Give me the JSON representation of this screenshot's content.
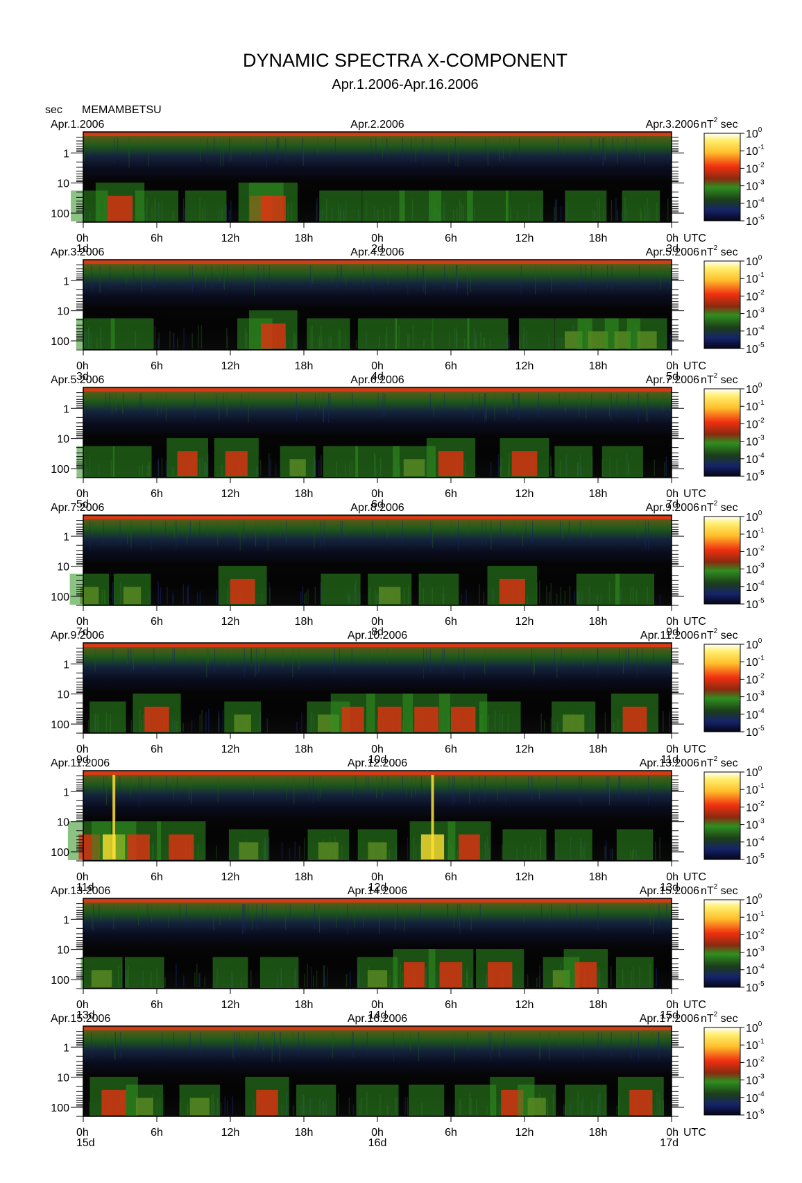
{
  "chart_data": {
    "type": "heatmap",
    "title": "DYNAMIC SPECTRA X-COMPONENT",
    "subtitle": "Apr.1.2006-Apr.16.2006",
    "ylabel": "sec",
    "station": "MEMAMBETSU",
    "xunit": "UTC",
    "colorbar_unit": "nT² sec",
    "colorbar_unit_base": "nT",
    "colorbar_unit_exp": "2",
    "colorbar_unit_suffix": "sec",
    "colorbar_levels": [
      "10^0",
      "10^-1",
      "10^-2",
      "10^-3",
      "10^-4",
      "10^-5"
    ],
    "colorbar_ticks": [
      {
        "base": "10",
        "exp": "0",
        "value": 1
      },
      {
        "base": "10",
        "exp": "-1",
        "value": 0.1
      },
      {
        "base": "10",
        "exp": "-2",
        "value": 0.01
      },
      {
        "base": "10",
        "exp": "-3",
        "value": 0.001
      },
      {
        "base": "10",
        "exp": "-4",
        "value": 0.0001
      },
      {
        "base": "10",
        "exp": "-5",
        "value": 1e-05
      }
    ],
    "colors": {
      "background": "#0a0a0a",
      "band_top": "#d83a16",
      "green": "#2f8f20",
      "dark_green": "#1c3f18",
      "blue": "#16246a",
      "red": "#e03212",
      "yellow": "#ffe030"
    },
    "y_axis": {
      "scale": "log",
      "range_sec": [
        0.2,
        200
      ],
      "tick_labels": [
        "1",
        "10",
        "100"
      ],
      "tick_values": [
        1,
        10,
        100
      ]
    },
    "x_tick_labels": [
      "0h",
      "6h",
      "12h",
      "18h",
      "0h",
      "6h",
      "12h",
      "18h",
      "0h"
    ],
    "panels": [
      {
        "left_date": "Apr.1.2006",
        "mid_date": "Apr.2.2006",
        "right_date": "Apr.3.2006",
        "day_labels": [
          "1d",
          "2d",
          "3d"
        ],
        "activity": [
          {
            "hour": 0.5,
            "level": -4
          },
          {
            "hour": 3,
            "level": -2
          },
          {
            "hour": 6,
            "level": -4
          },
          {
            "hour": 10,
            "level": -4
          },
          {
            "hour": 14.5,
            "level": -2
          },
          {
            "hour": 15.5,
            "level": -2
          },
          {
            "hour": 21,
            "level": -4
          },
          {
            "hour": 24.5,
            "level": -4
          },
          {
            "hour": 27.5,
            "level": -4
          },
          {
            "hour": 30,
            "level": -4
          },
          {
            "hour": 33,
            "level": -4
          },
          {
            "hour": 36,
            "level": -4
          },
          {
            "hour": 41,
            "level": -4
          },
          {
            "hour": 45.5,
            "level": -4
          }
        ]
      },
      {
        "left_date": "Apr.3.2006",
        "mid_date": "Apr.4.2006",
        "right_date": "Apr.5.2006",
        "day_labels": [
          "3d",
          "4d",
          "5d"
        ],
        "activity": [
          {
            "hour": 1,
            "level": -4
          },
          {
            "hour": 4,
            "level": -4
          },
          {
            "hour": 14,
            "level": -4
          },
          {
            "hour": 15.5,
            "level": -2
          },
          {
            "hour": 20,
            "level": -4
          },
          {
            "hour": 24,
            "level": -4
          },
          {
            "hour": 27,
            "level": -4
          },
          {
            "hour": 30,
            "level": -4
          },
          {
            "hour": 33,
            "level": -4
          },
          {
            "hour": 37,
            "level": -4
          },
          {
            "hour": 40,
            "level": -3
          },
          {
            "hour": 42,
            "level": -3
          },
          {
            "hour": 44,
            "level": -3
          },
          {
            "hour": 46,
            "level": -3
          }
        ]
      },
      {
        "left_date": "Apr.5.2006",
        "mid_date": "Apr.6.2006",
        "right_date": "Apr.7.2006",
        "day_labels": [
          "5d",
          "6d",
          "7d"
        ],
        "activity": [
          {
            "hour": 1,
            "level": -4
          },
          {
            "hour": 4,
            "level": -4
          },
          {
            "hour": 8.5,
            "level": -2
          },
          {
            "hour": 12.5,
            "level": -2
          },
          {
            "hour": 17.5,
            "level": -3
          },
          {
            "hour": 21,
            "level": -4
          },
          {
            "hour": 24,
            "level": -4
          },
          {
            "hour": 27,
            "level": -3
          },
          {
            "hour": 30,
            "level": -2
          },
          {
            "hour": 36,
            "level": -2
          },
          {
            "hour": 40,
            "level": -4
          },
          {
            "hour": 44,
            "level": -4
          }
        ]
      },
      {
        "left_date": "Apr.7.2006",
        "mid_date": "Apr.8.2006",
        "right_date": "Apr.9.2006",
        "day_labels": [
          "7d",
          "8d",
          "9d"
        ],
        "activity": [
          {
            "hour": 0.5,
            "level": -3
          },
          {
            "hour": 4,
            "level": -3
          },
          {
            "hour": 13,
            "level": -2
          },
          {
            "hour": 21,
            "level": -4
          },
          {
            "hour": 25,
            "level": -3
          },
          {
            "hour": 29,
            "level": -4
          },
          {
            "hour": 35,
            "level": -2
          },
          {
            "hour": 42,
            "level": -4
          },
          {
            "hour": 45,
            "level": -4
          }
        ]
      },
      {
        "left_date": "Apr.9.2006",
        "mid_date": "Apr.10.2006",
        "right_date": "Apr.11.2006",
        "day_labels": [
          "9d",
          "10d",
          "11d"
        ],
        "activity": [
          {
            "hour": 2,
            "level": -4
          },
          {
            "hour": 6,
            "level": -2
          },
          {
            "hour": 13,
            "level": -3
          },
          {
            "hour": 20,
            "level": -3
          },
          {
            "hour": 22,
            "level": -2
          },
          {
            "hour": 25,
            "level": -2
          },
          {
            "hour": 28,
            "level": -2
          },
          {
            "hour": 31,
            "level": -2
          },
          {
            "hour": 34,
            "level": -4
          },
          {
            "hour": 40,
            "level": -3
          },
          {
            "hour": 45,
            "level": -2
          }
        ]
      },
      {
        "left_date": "Apr.11.2006",
        "mid_date": "Apr.12.2006",
        "right_date": "Apr.13.2006",
        "day_labels": [
          "11d",
          "12d",
          "13d"
        ],
        "activity": [
          {
            "hour": 0.5,
            "level": -2
          },
          {
            "hour": 2.5,
            "level": -1
          },
          {
            "hour": 4.5,
            "level": -2
          },
          {
            "hour": 8,
            "level": -2
          },
          {
            "hour": 13.5,
            "level": -3
          },
          {
            "hour": 20,
            "level": -3
          },
          {
            "hour": 24,
            "level": -3
          },
          {
            "hour": 28.5,
            "level": -1
          },
          {
            "hour": 31.5,
            "level": -2
          },
          {
            "hour": 36,
            "level": -4
          },
          {
            "hour": 40,
            "level": -4
          },
          {
            "hour": 45,
            "level": -4
          }
        ]
      },
      {
        "left_date": "Apr.13.2006",
        "mid_date": "Apr.14.2006",
        "right_date": "Apr.15.2006",
        "day_labels": [
          "13d",
          "14d",
          "15d"
        ],
        "activity": [
          {
            "hour": 1.5,
            "level": -3
          },
          {
            "hour": 5,
            "level": -4
          },
          {
            "hour": 12,
            "level": -4
          },
          {
            "hour": 16,
            "level": -4
          },
          {
            "hour": 24,
            "level": -3
          },
          {
            "hour": 27,
            "level": -2
          },
          {
            "hour": 30,
            "level": -2
          },
          {
            "hour": 34,
            "level": -2
          },
          {
            "hour": 39,
            "level": -3
          },
          {
            "hour": 41,
            "level": -2
          },
          {
            "hour": 45,
            "level": -4
          }
        ]
      },
      {
        "left_date": "Apr.15.2006",
        "mid_date": "Apr.16.2006",
        "right_date": "Apr.17.2006",
        "day_labels": [
          "15d",
          "16d",
          "17d"
        ],
        "activity": [
          {
            "hour": 2.5,
            "level": -2
          },
          {
            "hour": 5,
            "level": -3
          },
          {
            "hour": 9.5,
            "level": -3
          },
          {
            "hour": 15,
            "level": -2
          },
          {
            "hour": 19,
            "level": -4
          },
          {
            "hour": 24,
            "level": -4
          },
          {
            "hour": 28,
            "level": -4
          },
          {
            "hour": 32,
            "level": -4
          },
          {
            "hour": 35,
            "level": -2
          },
          {
            "hour": 37,
            "level": -3
          },
          {
            "hour": 41,
            "level": -4
          },
          {
            "hour": 45.5,
            "level": -2
          }
        ]
      }
    ]
  }
}
